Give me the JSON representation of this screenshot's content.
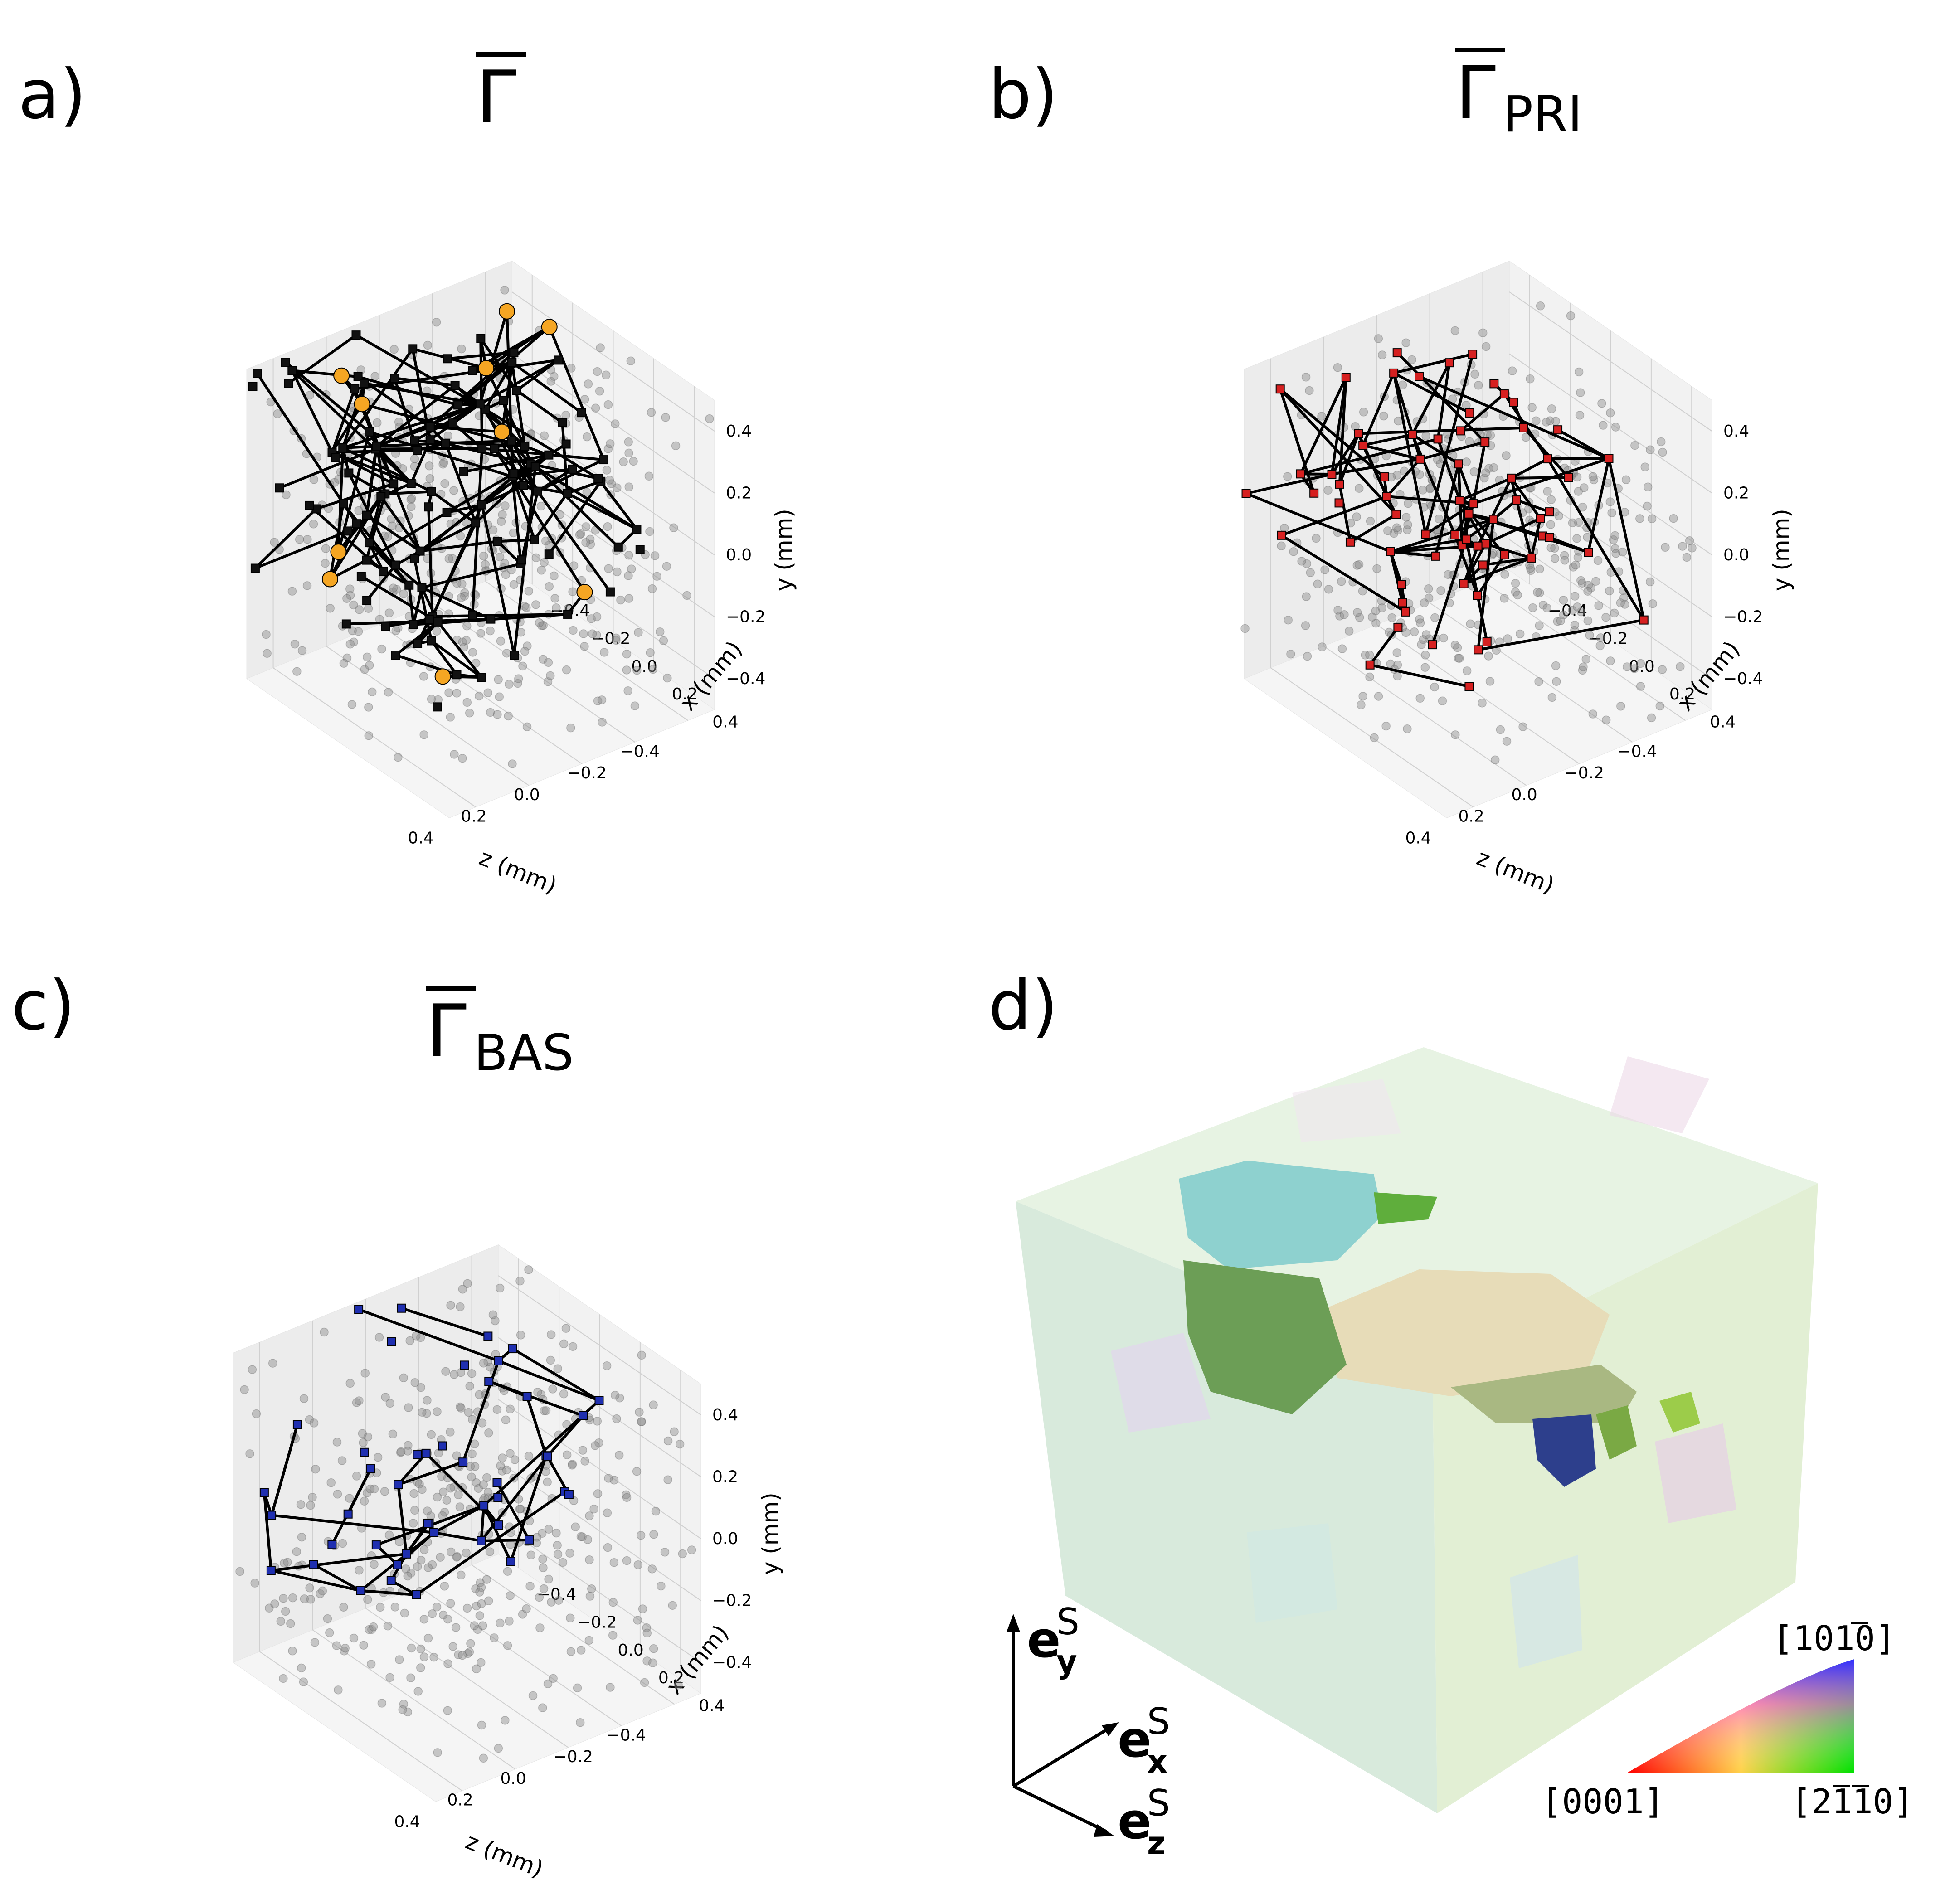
{
  "panels": {
    "a": {
      "letter": "a)",
      "title_main": "Γ",
      "title_sub": ""
    },
    "b": {
      "letter": "b)",
      "title_main": "Γ",
      "title_sub": "PRI"
    },
    "c": {
      "letter": "c)",
      "title_main": "Γ",
      "title_sub": "BAS"
    },
    "d": {
      "letter": "d)"
    }
  },
  "axes": {
    "xlabel": "x (mm)",
    "ylabel": "y (mm)",
    "zlabel": "z (mm)",
    "ticks": [
      -0.4,
      -0.2,
      0.0,
      0.2,
      0.4
    ],
    "tick_labels": [
      "−0.4",
      "−0.2",
      "0.0",
      "0.2",
      "0.4"
    ]
  },
  "colors": {
    "background_points": "#8c8c8c",
    "edges": "#000000",
    "graph_a_nodes": "#111111",
    "graph_a_highlight": "#f5a623",
    "graph_b_nodes": "#d62020",
    "graph_c_nodes": "#1f2fb0",
    "pane": "#f2f2f2",
    "grid": "#d0d0d0"
  },
  "chart_data": [
    {
      "id": "a",
      "type": "scatter",
      "subtype": "3d-network",
      "title": "Γ̄",
      "xlabel": "x (mm)",
      "ylabel": "y (mm)",
      "zlabel": "z (mm)",
      "xlim": [
        -0.5,
        0.5
      ],
      "ylim": [
        -0.5,
        0.5
      ],
      "zlim": [
        -0.5,
        0.5
      ],
      "grid": true,
      "node_marker": "square",
      "highlight_marker": "circle"
    },
    {
      "id": "b",
      "type": "scatter",
      "subtype": "3d-network",
      "title": "Γ̄PRI",
      "xlabel": "x (mm)",
      "ylabel": "y (mm)",
      "zlabel": "z (mm)",
      "xlim": [
        -0.5,
        0.5
      ],
      "ylim": [
        -0.5,
        0.5
      ],
      "zlim": [
        -0.5,
        0.5
      ],
      "grid": true,
      "node_marker": "square"
    },
    {
      "id": "c",
      "type": "scatter",
      "subtype": "3d-network",
      "title": "Γ̄BAS",
      "xlabel": "x (mm)",
      "ylabel": "y (mm)",
      "zlabel": "z (mm)",
      "xlim": [
        -0.5,
        0.5
      ],
      "ylim": [
        -0.5,
        0.5
      ],
      "zlim": [
        -0.5,
        0.5
      ],
      "grid": true,
      "node_marker": "square"
    }
  ],
  "panel_d": {
    "axes_labels": {
      "ey": {
        "base": "e",
        "sub": "y",
        "sup": "S"
      },
      "ex": {
        "base": "e",
        "sub": "x",
        "sup": "S"
      },
      "ez": {
        "base": "e",
        "sub": "z",
        "sup": "S"
      }
    },
    "ipf_key": {
      "corner_left": "[0001]",
      "corner_right": "[2110]",
      "corner_top": "[1010]"
    }
  }
}
